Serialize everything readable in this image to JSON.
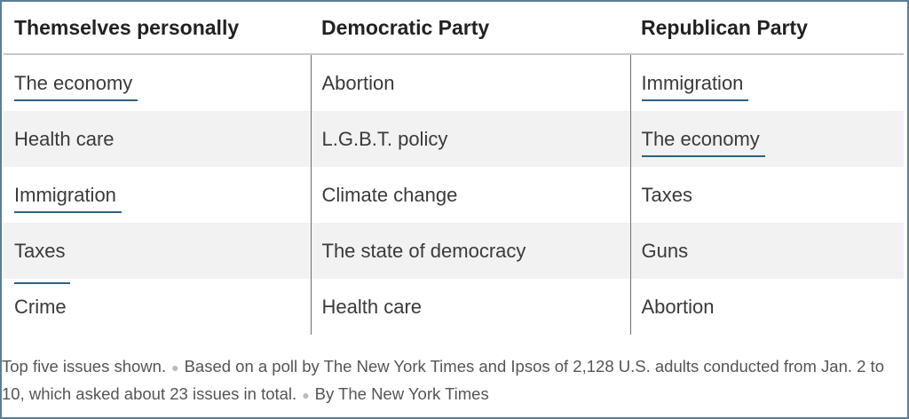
{
  "table": {
    "headers": [
      "Themselves personally",
      "Democratic Party",
      "Republican Party"
    ],
    "rows": [
      [
        "The economy",
        "Abortion",
        "Immigration"
      ],
      [
        "Health care",
        "L.G.B.T. policy",
        "The economy"
      ],
      [
        "Immigration",
        "Climate change",
        "Taxes"
      ],
      [
        "Taxes",
        "The state of democracy",
        "Guns"
      ],
      [
        "Crime",
        "Health care",
        "Abortion"
      ]
    ],
    "underlined_issues": [
      "The economy",
      "Immigration",
      "Taxes"
    ],
    "underline_color": "#2d6280"
  },
  "footnote": {
    "note1": "Top five issues shown.",
    "note2": "Based on a poll by The New York Times and Ipsos of 2,128 U.S. adults conducted from Jan. 2 to 10, which asked about 23 issues in total.",
    "note3": "By The New York Times"
  },
  "colors": {
    "border": "#5a7f96",
    "stripe": "#f2f2f2"
  }
}
